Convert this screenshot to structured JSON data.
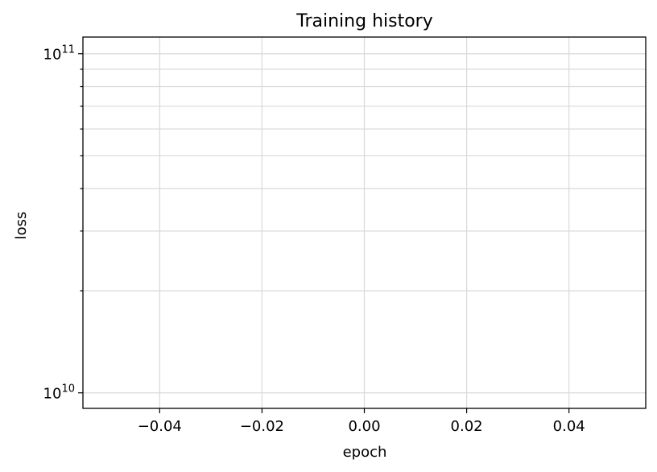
{
  "chart_data": {
    "type": "line",
    "title": "Training history",
    "xlabel": "epoch",
    "ylabel": "loss",
    "x_scale": "linear",
    "y_scale": "log",
    "xlim": [
      -0.055,
      0.055
    ],
    "ylim": [
      9000000000,
      112000000000
    ],
    "x_ticks": [
      -0.04,
      -0.02,
      0.0,
      0.02,
      0.04
    ],
    "x_tick_labels": [
      "−0.04",
      "−0.02",
      "0.00",
      "0.02",
      "0.04"
    ],
    "y_major_ticks": [
      10000000000,
      100000000000
    ],
    "y_tick_labels": [
      {
        "base": "10",
        "exp": "10"
      },
      {
        "base": "10",
        "exp": "11"
      }
    ],
    "y_minor_ticks": [
      20000000000,
      30000000000,
      40000000000,
      50000000000,
      60000000000,
      70000000000,
      80000000000,
      90000000000
    ],
    "grid": true,
    "series": []
  }
}
